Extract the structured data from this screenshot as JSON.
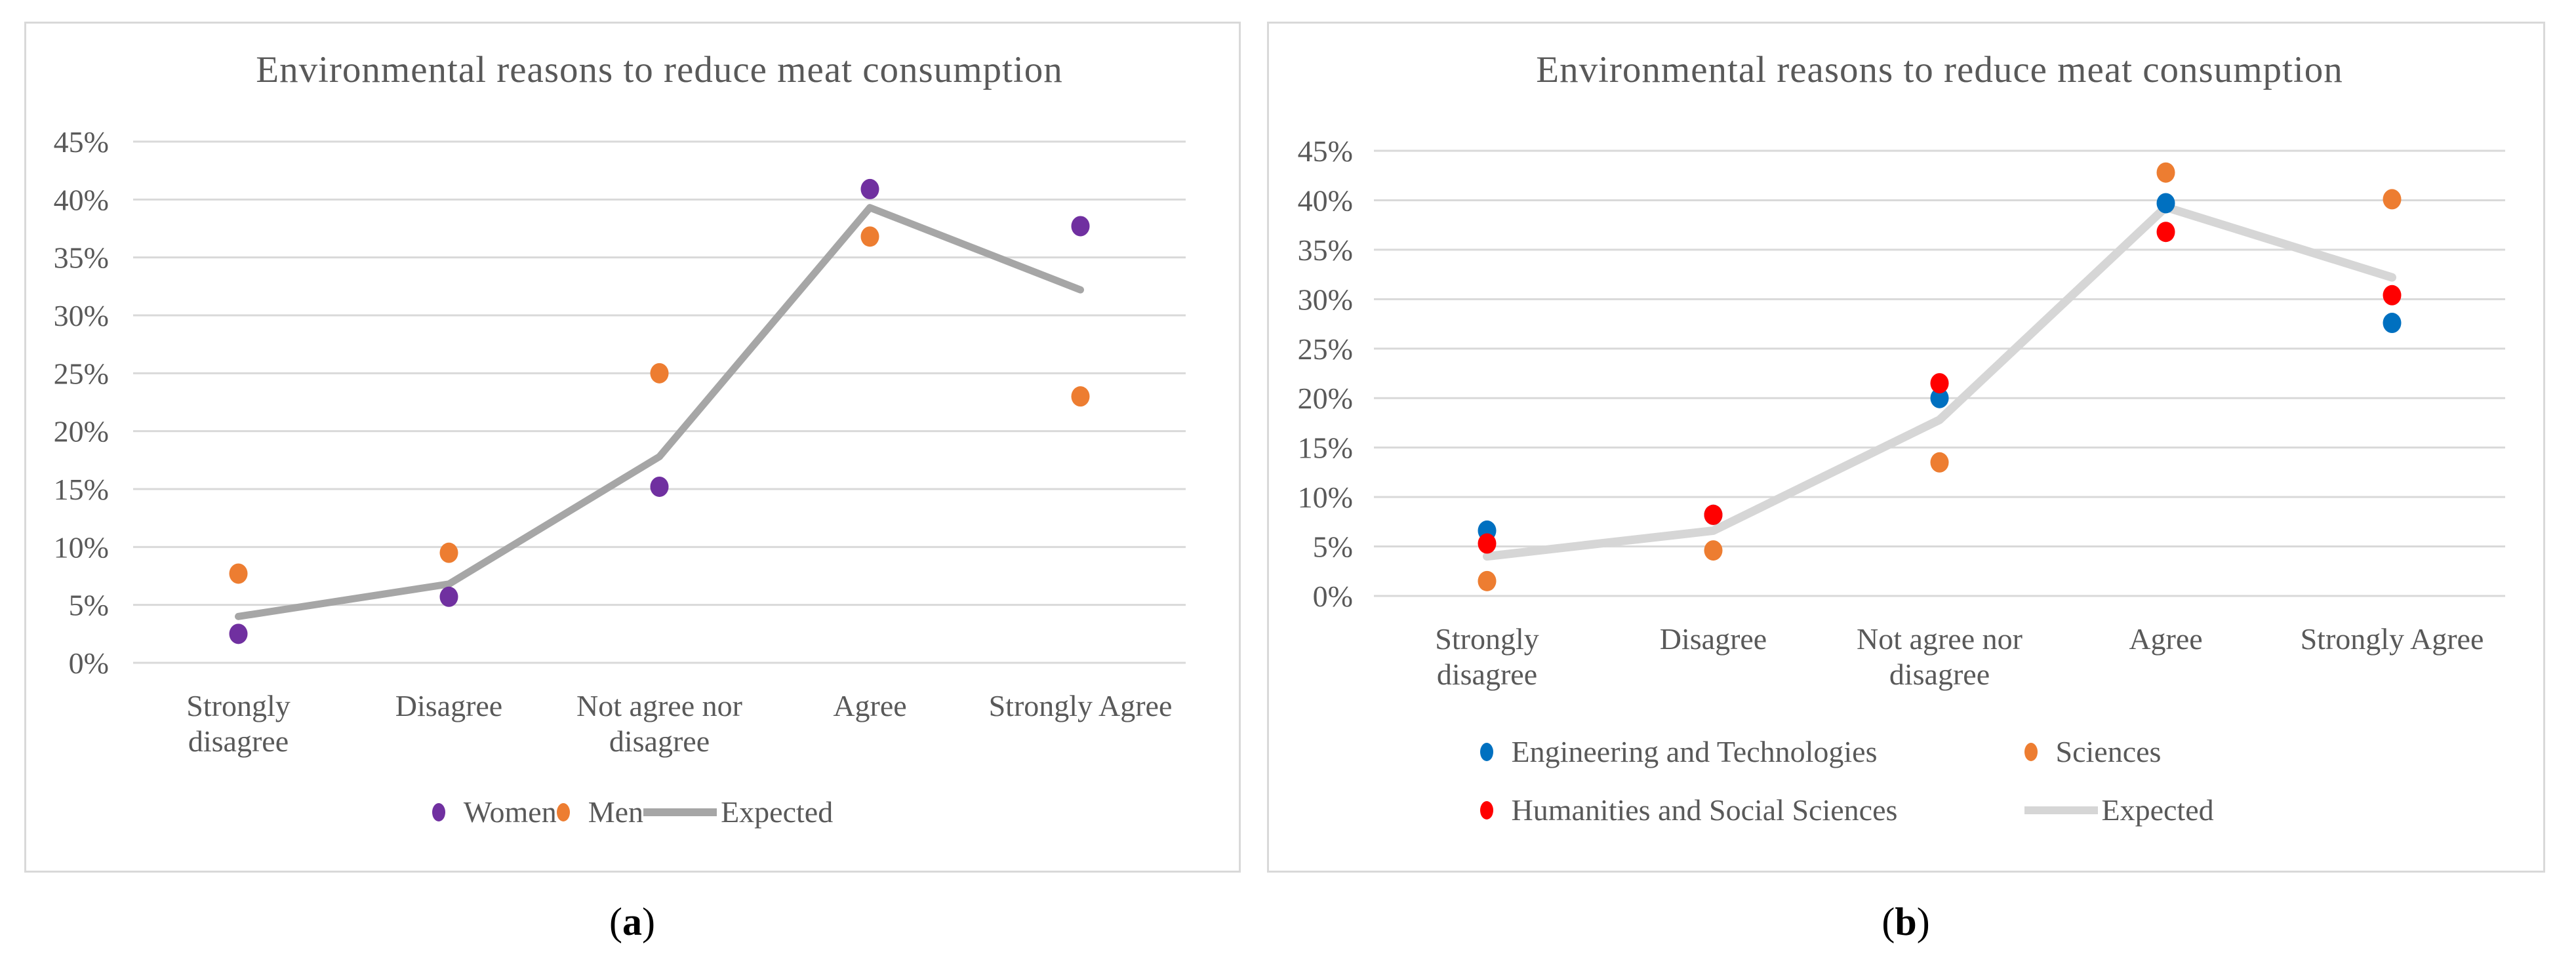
{
  "figure": {
    "captions": {
      "a": {
        "open": "(",
        "label": "a",
        "close": ")"
      },
      "b": {
        "open": "(",
        "label": "b",
        "close": ")"
      }
    }
  },
  "colors": {
    "text": "#595959",
    "gridline": "#d9d9d9",
    "panel_border": "#d9d9d9",
    "women_purple": "#7030A0",
    "men_orange": "#ED7D31",
    "expected_gray": "#A6A6A6",
    "engineering_blue": "#0070C0",
    "sciences_orange": "#ED7D31",
    "humanities_red": "#FF0000",
    "expected_light_gray": "#D6D6D6"
  },
  "chart_data": [
    {
      "id": "a",
      "type": "scatter",
      "title": "Environmental reasons to reduce meat consumption",
      "categories": [
        "Strongly disagree",
        "Disagree",
        "Not agree nor disagree",
        "Agree",
        "Strongly Agree"
      ],
      "categories_wrapped": [
        [
          "Strongly",
          "disagree"
        ],
        [
          "Disagree"
        ],
        [
          "Not agree nor",
          "disagree"
        ],
        [
          "Agree"
        ],
        [
          "Strongly Agree"
        ]
      ],
      "y_tick_labels": [
        "45%",
        "40%",
        "35%",
        "30%",
        "25%",
        "20%",
        "15%",
        "10%",
        "5%",
        "0%"
      ],
      "y_tick_values": [
        45,
        40,
        35,
        30,
        25,
        20,
        15,
        10,
        5,
        0
      ],
      "ylim": [
        0,
        45
      ],
      "grid": true,
      "legend_position": "bottom",
      "series": [
        {
          "name": "Women",
          "type": "scatter",
          "color": "#7030A0",
          "values": [
            2.5,
            5.7,
            15.2,
            40.9,
            37.7
          ]
        },
        {
          "name": "Men",
          "type": "scatter",
          "color": "#ED7D31",
          "values": [
            7.7,
            9.5,
            25.0,
            36.8,
            23.0
          ]
        },
        {
          "name": "Expected",
          "type": "line",
          "color": "#A6A6A6",
          "values": [
            4.0,
            6.8,
            17.8,
            39.3,
            32.2
          ]
        }
      ],
      "legend_rows": [
        [
          0,
          1,
          2
        ]
      ]
    },
    {
      "id": "b",
      "type": "scatter",
      "title": "Environmental reasons to reduce meat consumption",
      "categories": [
        "Strongly disagree",
        "Disagree",
        "Not agree nor disagree",
        "Agree",
        "Strongly Agree"
      ],
      "categories_wrapped": [
        [
          "Strongly",
          "disagree"
        ],
        [
          "Disagree"
        ],
        [
          "Not agree nor",
          "disagree"
        ],
        [
          "Agree"
        ],
        [
          "Strongly Agree"
        ]
      ],
      "y_tick_labels": [
        "45%",
        "40%",
        "35%",
        "30%",
        "25%",
        "20%",
        "15%",
        "10%",
        "5%",
        "0%"
      ],
      "y_tick_values": [
        45,
        40,
        35,
        30,
        25,
        20,
        15,
        10,
        5,
        0
      ],
      "ylim": [
        0,
        45
      ],
      "grid": true,
      "legend_position": "bottom",
      "series": [
        {
          "name": "Engineering and Technologies",
          "type": "scatter",
          "color": "#0070C0",
          "values": [
            6.6,
            8.2,
            20.0,
            39.7,
            27.6
          ]
        },
        {
          "name": "Sciences",
          "type": "scatter",
          "color": "#ED7D31",
          "values": [
            1.5,
            4.6,
            13.5,
            42.8,
            40.1
          ]
        },
        {
          "name": "Humanities and Social Sciences",
          "type": "scatter",
          "color": "#FF0000",
          "values": [
            5.3,
            8.2,
            21.5,
            36.8,
            30.4
          ]
        },
        {
          "name": "Expected",
          "type": "line",
          "color": "#D6D6D6",
          "values": [
            4.0,
            6.6,
            17.8,
            39.3,
            32.2
          ]
        }
      ],
      "legend_rows": [
        [
          0,
          1
        ],
        [
          2,
          3
        ]
      ]
    }
  ]
}
